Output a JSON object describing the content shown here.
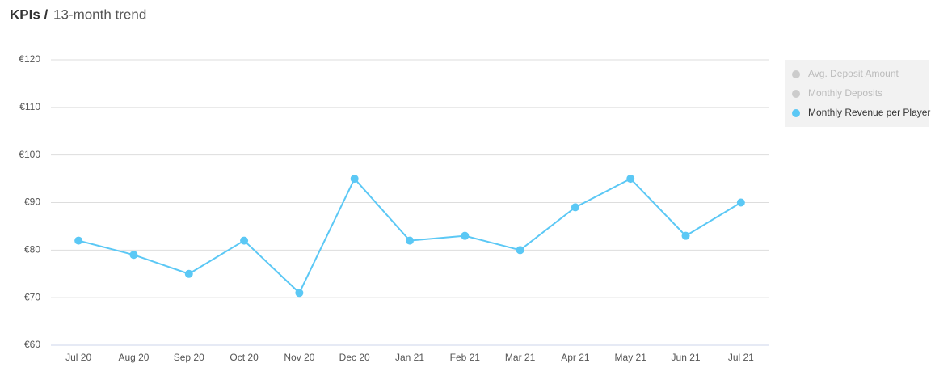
{
  "chart_data": {
    "type": "line",
    "title": "KPIs /",
    "subtitle": "13-month trend",
    "categories": [
      "Jul 20",
      "Aug 20",
      "Sep 20",
      "Oct 20",
      "Nov 20",
      "Dec 20",
      "Jan 21",
      "Feb 21",
      "Mar 21",
      "Apr 21",
      "May 21",
      "Jun 21",
      "Jul 21"
    ],
    "series": [
      {
        "name": "Avg. Deposit Amount",
        "color": "#cccccc",
        "hidden": true
      },
      {
        "name": "Monthly Deposits",
        "color": "#cccccc",
        "hidden": true
      },
      {
        "name": "Monthly Revenue per Player",
        "color": "#5bc8f5",
        "values": [
          82,
          79,
          75,
          82,
          71,
          95,
          82,
          83,
          80,
          89,
          95,
          83,
          90
        ]
      }
    ],
    "ylim": [
      60,
      120
    ],
    "yticks": [
      {
        "value": 60,
        "label": "€60"
      },
      {
        "value": 70,
        "label": "€70"
      },
      {
        "value": 80,
        "label": "€80"
      },
      {
        "value": 90,
        "label": "€90"
      },
      {
        "value": 100,
        "label": "€100"
      },
      {
        "value": 110,
        "label": "€110"
      },
      {
        "value": 120,
        "label": "€120"
      }
    ],
    "grid": true,
    "legend": "right"
  }
}
